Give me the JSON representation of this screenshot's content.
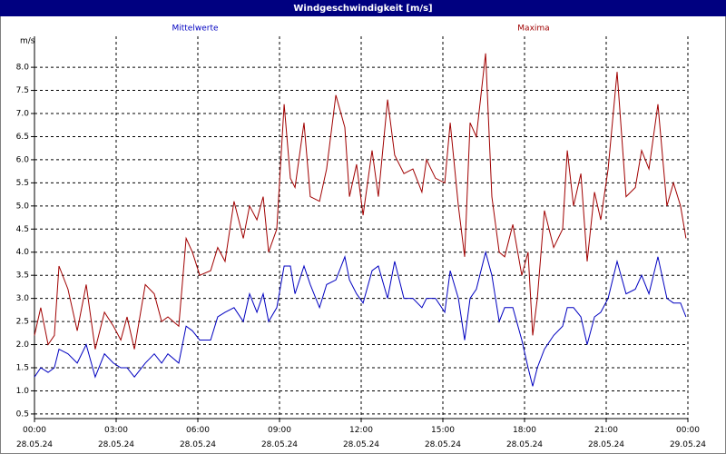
{
  "chart_data": {
    "type": "line",
    "title": "Windgeschwindigkeit [m/s]",
    "y_label": "m/s",
    "x": [
      0,
      0.23,
      0.5,
      0.73,
      0.9,
      1.23,
      1.57,
      1.9,
      2.23,
      2.57,
      2.9,
      3.17,
      3.4,
      3.67,
      4.07,
      4.4,
      4.67,
      4.9,
      5.3,
      5.57,
      5.8,
      6.07,
      6.47,
      6.73,
      7,
      7.33,
      7.67,
      7.9,
      8.17,
      8.4,
      8.6,
      8.9,
      9.17,
      9.4,
      9.57,
      9.9,
      10.13,
      10.47,
      10.73,
      11.07,
      11.4,
      11.57,
      11.83,
      12.07,
      12.4,
      12.63,
      12.97,
      13.23,
      13.57,
      13.9,
      14.23,
      14.4,
      14.73,
      15.07,
      15.27,
      15.57,
      15.8,
      16,
      16.23,
      16.57,
      16.8,
      17.07,
      17.27,
      17.57,
      17.9,
      18.13,
      18.3,
      18.47,
      18.73,
      19.07,
      19.4,
      19.57,
      19.8,
      20.07,
      20.3,
      20.57,
      20.8,
      21.07,
      21.4,
      21.73,
      22.07,
      22.3,
      22.57,
      22.9,
      23.23,
      23.47,
      23.73,
      23.93
    ],
    "series": [
      {
        "name": "Mittelwerte",
        "color": "#0000c0",
        "values": [
          1.3,
          1.5,
          1.4,
          1.5,
          1.9,
          1.8,
          1.6,
          2.0,
          1.3,
          1.8,
          1.6,
          1.5,
          1.5,
          1.3,
          1.6,
          1.8,
          1.6,
          1.8,
          1.6,
          2.4,
          2.3,
          2.1,
          2.1,
          2.6,
          2.7,
          2.8,
          2.5,
          3.1,
          2.7,
          3.1,
          2.5,
          2.8,
          3.7,
          3.7,
          3.1,
          3.7,
          3.3,
          2.8,
          3.3,
          3.4,
          3.9,
          3.4,
          3.1,
          2.9,
          3.6,
          3.7,
          3.0,
          3.8,
          3.0,
          3.0,
          2.8,
          3.0,
          3.0,
          2.7,
          3.6,
          3.0,
          2.1,
          3.0,
          3.2,
          4.0,
          3.5,
          2.5,
          2.8,
          2.8,
          2.1,
          1.5,
          1.1,
          1.5,
          1.9,
          2.2,
          2.4,
          2.8,
          2.8,
          2.6,
          2.0,
          2.6,
          2.7,
          3.0,
          3.8,
          3.1,
          3.2,
          3.5,
          3.1,
          3.9,
          3.0,
          2.9,
          2.9,
          2.6
        ]
      },
      {
        "name": "Maxima",
        "color": "#a00000",
        "values": [
          2.2,
          2.8,
          2.0,
          2.2,
          3.7,
          3.2,
          2.3,
          3.3,
          1.9,
          2.7,
          2.4,
          2.1,
          2.6,
          1.9,
          3.3,
          3.1,
          2.5,
          2.6,
          2.4,
          4.3,
          4.0,
          3.5,
          3.6,
          4.1,
          3.8,
          5.1,
          4.3,
          5.0,
          4.7,
          5.2,
          4.0,
          4.5,
          7.2,
          5.6,
          5.4,
          6.8,
          5.2,
          5.1,
          5.8,
          7.4,
          6.7,
          5.2,
          5.9,
          4.8,
          6.2,
          5.2,
          7.3,
          6.1,
          5.7,
          5.8,
          5.3,
          6.0,
          5.6,
          5.5,
          6.8,
          5.0,
          3.9,
          6.8,
          6.5,
          8.3,
          5.2,
          4.0,
          3.9,
          4.6,
          3.5,
          4.0,
          2.2,
          3.0,
          4.9,
          4.1,
          4.5,
          6.2,
          5.0,
          5.7,
          3.8,
          5.3,
          4.7,
          5.8,
          7.9,
          5.2,
          5.4,
          6.2,
          5.8,
          7.2,
          5.0,
          5.5,
          5.0,
          4.3
        ]
      }
    ],
    "xlim": [
      0,
      24
    ],
    "xticks": [
      {
        "value": 0,
        "label": "00:00 28.05.24"
      },
      {
        "value": 3,
        "label": "03:00 28.05.24"
      },
      {
        "value": 6,
        "label": "06:00 28.05.24"
      },
      {
        "value": 9,
        "label": "09:00 28.05.24"
      },
      {
        "value": 12,
        "label": "12:00 28.05.24"
      },
      {
        "value": 15,
        "label": "15:00 28.05.24"
      },
      {
        "value": 18,
        "label": "18:00 28.05.24"
      },
      {
        "value": 21,
        "label": "21:00 28.05.24"
      },
      {
        "value": 24,
        "label": "00:00 29.05.24"
      }
    ],
    "ylim": [
      0.4,
      8.67
    ],
    "yticks": [
      0.5,
      {
        "value": 1,
        "label": "1.0"
      },
      1.5,
      {
        "value": 2,
        "label": "2.0"
      },
      2.5,
      {
        "value": 3,
        "label": "3.0"
      },
      3.5,
      {
        "value": 4,
        "label": "4.0"
      },
      4.5,
      {
        "value": 5,
        "label": "5.0"
      },
      5.5,
      {
        "value": 6,
        "label": "6.0"
      },
      6.5,
      {
        "value": 7,
        "label": "7.0"
      },
      7.5,
      {
        "value": 8,
        "label": "8.0"
      }
    ],
    "grid": true
  }
}
